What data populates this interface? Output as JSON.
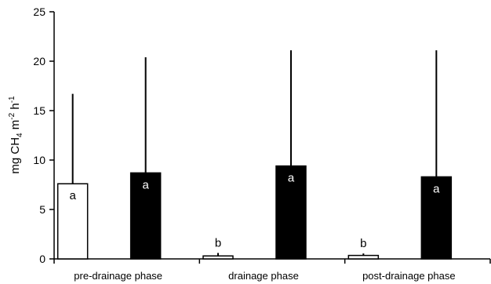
{
  "chart_data": {
    "type": "bar",
    "categories": [
      "pre-drainage phase",
      "drainage phase",
      "post-drainage phase"
    ],
    "ylim": [
      0,
      25
    ],
    "yticks": [
      0,
      5,
      10,
      15,
      20,
      25
    ],
    "ylabel_parts": [
      "mg CH",
      "4",
      " m",
      "-2",
      " h",
      "-1"
    ],
    "grid": false,
    "series": [
      {
        "fill": "#ffffff",
        "stroke": "#000000",
        "values": [
          7.6,
          0.3,
          0.35
        ],
        "error_upper": [
          16.7,
          0.6,
          0.55
        ],
        "labels": [
          "a",
          "b",
          "b"
        ],
        "label_position": [
          "inside",
          "above",
          "above"
        ]
      },
      {
        "fill": "#000000",
        "stroke": "#000000",
        "values": [
          8.7,
          9.4,
          8.3
        ],
        "error_upper": [
          20.4,
          21.1,
          21.1
        ],
        "labels": [
          "a",
          "a",
          "a"
        ],
        "label_position": [
          "inside",
          "inside",
          "inside"
        ]
      }
    ]
  }
}
